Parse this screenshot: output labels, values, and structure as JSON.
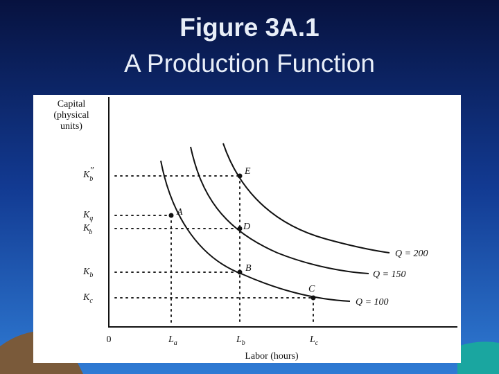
{
  "title": {
    "line1": "Figure 3A.1",
    "line2": "A Production Function"
  },
  "diagram": {
    "y_axis_label": [
      "Capital",
      "(physical",
      "units)"
    ],
    "x_axis_label": "Labor (hours)",
    "origin": "0",
    "y_ticks": [
      {
        "symbol": "K",
        "prime": "″",
        "sub": "b"
      },
      {
        "symbol": "K",
        "sub": "a"
      },
      {
        "symbol": "K",
        "prime": "′",
        "sub": "b"
      },
      {
        "symbol": "K",
        "sub": "b"
      },
      {
        "symbol": "K",
        "sub": "c"
      }
    ],
    "x_ticks": [
      {
        "symbol": "L",
        "sub": "a"
      },
      {
        "symbol": "L",
        "sub": "b"
      },
      {
        "symbol": "L",
        "sub": "c"
      }
    ],
    "points": [
      "E",
      "A",
      "D",
      "B",
      "C"
    ],
    "curves": [
      "Q = 200",
      "Q = 150",
      "Q = 100"
    ]
  }
}
